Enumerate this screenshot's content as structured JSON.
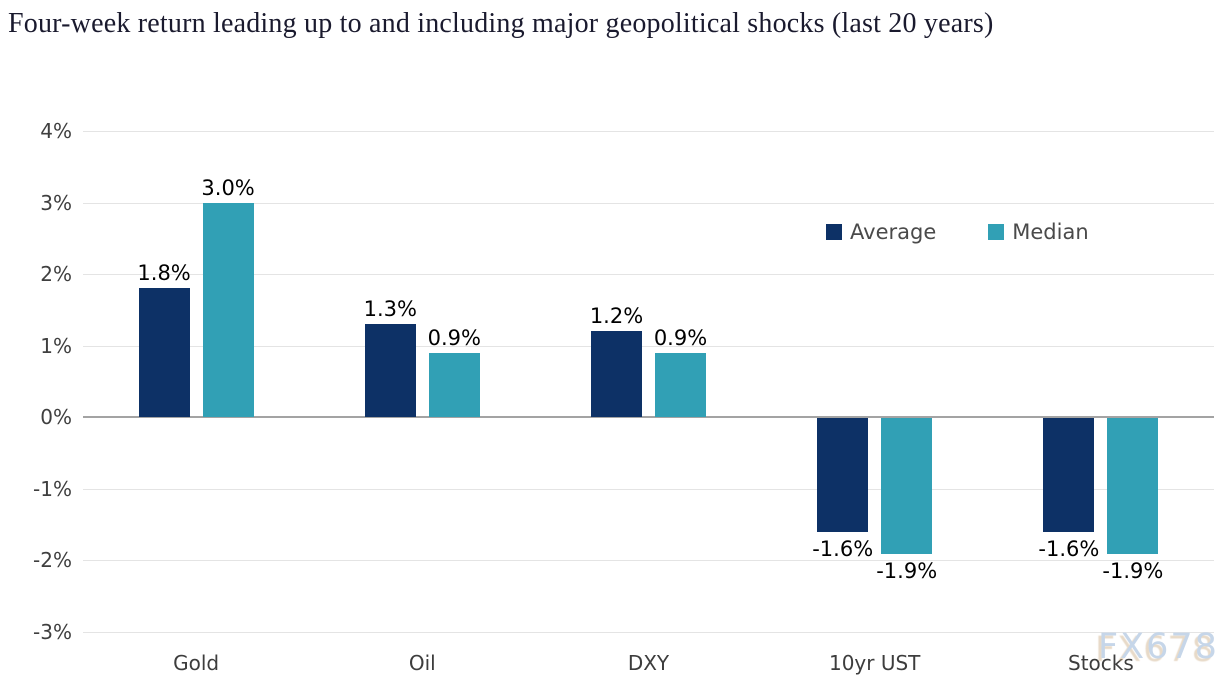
{
  "watermark": "FX678",
  "chart_data": {
    "type": "bar",
    "title": "Four-week return leading up to and including major geopolitical shocks (last 20 years)",
    "categories": [
      "Gold",
      "Oil",
      "DXY",
      "10yr UST",
      "Stocks"
    ],
    "series": [
      {
        "name": "Average",
        "color": "#0d3166",
        "values": [
          1.8,
          1.3,
          1.2,
          -1.6,
          -1.6
        ],
        "labels": [
          "1.8%",
          "1.3%",
          "1.2%",
          "-1.6%",
          "-1.6%"
        ]
      },
      {
        "name": "Median",
        "color": "#31a0b5",
        "values": [
          3.0,
          0.9,
          0.9,
          -1.9,
          -1.9
        ],
        "labels": [
          "3.0%",
          "0.9%",
          "0.9%",
          "-1.9%",
          "-1.9%"
        ]
      }
    ],
    "y_axis": {
      "ticks": [
        4,
        3,
        2,
        1,
        0,
        -1,
        -2,
        -3
      ],
      "tick_labels": [
        "4%",
        "3%",
        "2%",
        "1%",
        "0%",
        "-1%",
        "-2%",
        "-3%"
      ],
      "ylim": [
        -3,
        4
      ],
      "unit": "%"
    },
    "xlabel": "",
    "ylabel": "",
    "grid": true,
    "legend_position": "upper-right",
    "style_colors": {
      "grid": "#e4e4e4",
      "zero_line": "#a3a3a3",
      "axis_text": "#3f3f3f",
      "value_text": "#000000",
      "title_text": "#1a1a2e",
      "watermark_text": "#c6d6e9"
    }
  }
}
